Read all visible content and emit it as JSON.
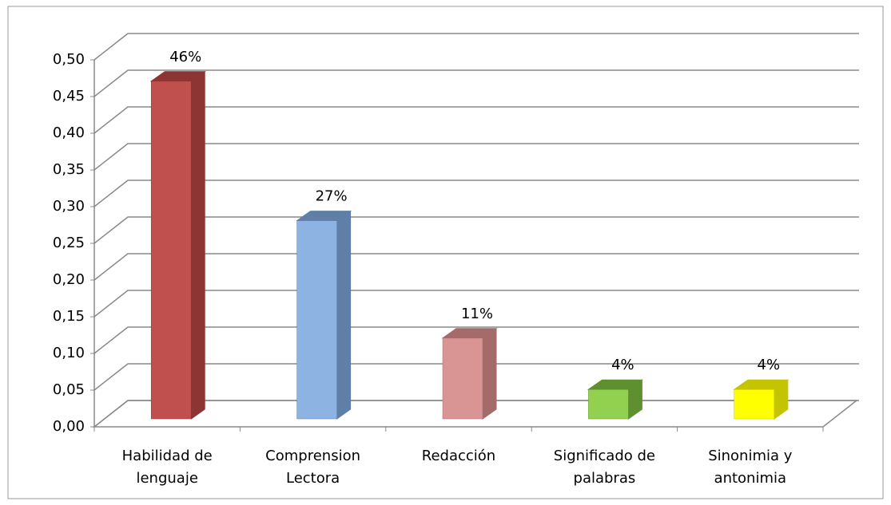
{
  "chart_data": {
    "type": "bar3d",
    "categories": [
      "Habilidad de lenguaje",
      "Comprension Lectora",
      "Redacción",
      "Significado de palabras",
      "Sinonimia y antonimia"
    ],
    "values": [
      0.46,
      0.27,
      0.11,
      0.04,
      0.04
    ],
    "value_labels": [
      "46%",
      "27%",
      "11%",
      "4%",
      "4%"
    ],
    "colors": [
      "#c0504d",
      "#8db3e2",
      "#d99594",
      "#92d050",
      "#ffff00"
    ],
    "side_colors": [
      "#8c3533",
      "#5f7ea8",
      "#a46b6a",
      "#5f9030",
      "#c4c400"
    ],
    "ylim": [
      0,
      0.5
    ],
    "yticks": [
      {
        "value": 0,
        "label": "0,00"
      },
      {
        "value": 0.05,
        "label": "0,05"
      },
      {
        "value": 0.1,
        "label": "0,10"
      },
      {
        "value": 0.15,
        "label": "0,15"
      },
      {
        "value": 0.2,
        "label": "0,20"
      },
      {
        "value": 0.25,
        "label": "0,25"
      },
      {
        "value": 0.3,
        "label": "0,30"
      },
      {
        "value": 0.35,
        "label": "0,35"
      },
      {
        "value": 0.4,
        "label": "0,40"
      },
      {
        "value": 0.45,
        "label": "0,45"
      },
      {
        "value": 0.5,
        "label": "0,50"
      }
    ],
    "grid": true
  }
}
